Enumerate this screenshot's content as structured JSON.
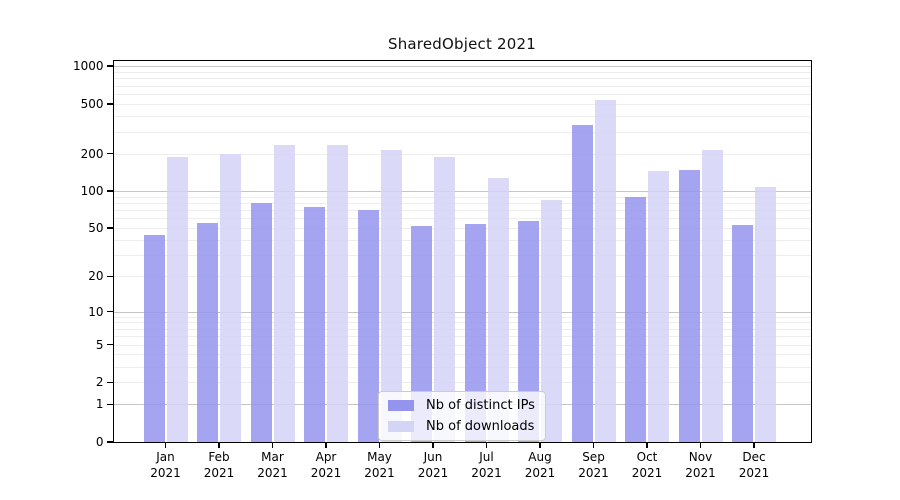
{
  "title": "SharedObject 2021",
  "colors": {
    "distinct_ips": "#9494ef",
    "downloads": "#d4d4f7",
    "major_gridline": "#c6c6c6",
    "minor_gridline": "#ededed",
    "axis_frame": "#000000"
  },
  "legend": {
    "items": [
      {
        "label": "Nb of distinct IPs",
        "color_key": "distinct_ips"
      },
      {
        "label": "Nb of downloads",
        "color_key": "downloads"
      }
    ]
  },
  "chart_data": {
    "type": "bar",
    "title": "SharedObject 2021",
    "yscale": "symlog-log1p",
    "categories": [
      "Jan 2021",
      "Feb 2021",
      "Mar 2021",
      "Apr 2021",
      "May 2021",
      "Jun 2021",
      "Jul 2021",
      "Aug 2021",
      "Sep 2021",
      "Oct 2021",
      "Nov 2021",
      "Dec 2021"
    ],
    "series": [
      {
        "name": "Nb of distinct IPs",
        "color_key": "distinct_ips",
        "values": [
          44,
          55,
          80,
          74,
          70,
          52,
          54,
          57,
          341,
          89,
          147,
          53
        ]
      },
      {
        "name": "Nb of downloads",
        "color_key": "downloads",
        "values": [
          186,
          199,
          232,
          235,
          215,
          186,
          126,
          84,
          534,
          145,
          213,
          107
        ]
      }
    ],
    "yticks": [
      0,
      1,
      2,
      5,
      10,
      20,
      50,
      100,
      200,
      500,
      1000
    ],
    "major_grid_values": [
      1,
      10,
      100,
      1000
    ],
    "ylim": [
      0,
      1100
    ],
    "grid": true,
    "legend_position": "lower center"
  }
}
